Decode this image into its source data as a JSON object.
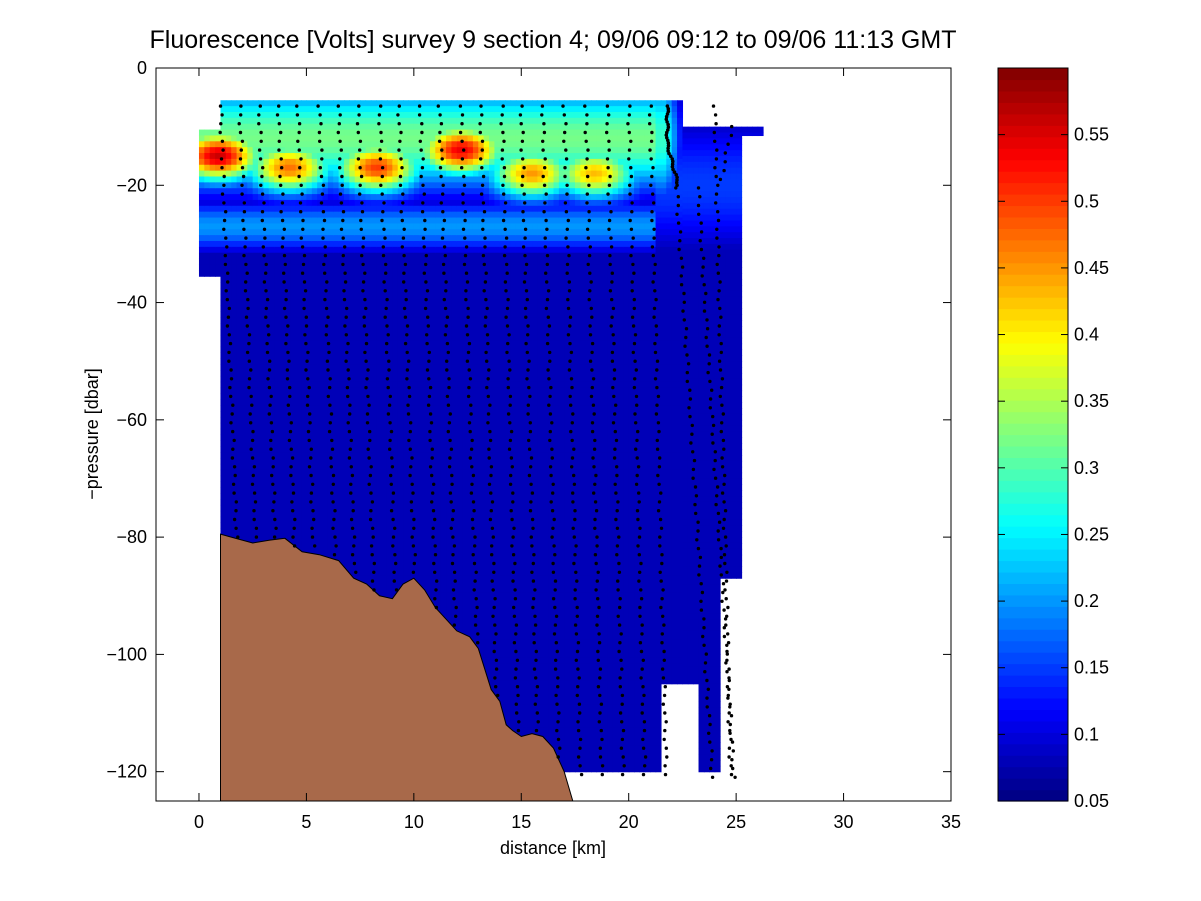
{
  "chart_data": {
    "type": "heatmap",
    "title": "Fluorescence [Volts] survey 9 section 4; 09/06 09:12 to 09/06 11:13 GMT",
    "xlabel": "distance [km]",
    "ylabel": "−pressure [dbar]",
    "xlim": [
      -2,
      35
    ],
    "ylim": [
      -125,
      0
    ],
    "x_ticks": [
      0,
      5,
      10,
      15,
      20,
      25,
      30,
      35
    ],
    "x_tick_labels": [
      "0",
      "5",
      "10",
      "15",
      "20",
      "25",
      "30",
      "35"
    ],
    "y_ticks": [
      0,
      -20,
      -40,
      -60,
      -80,
      -100,
      -120
    ],
    "y_tick_labels": [
      "0",
      "−20",
      "−40",
      "−60",
      "−80",
      "−100",
      "−120"
    ],
    "colorbar": {
      "colormap": "jet",
      "range": [
        0.05,
        0.6
      ],
      "ticks": [
        0.05,
        0.1,
        0.15,
        0.2,
        0.25,
        0.3,
        0.35,
        0.4,
        0.45,
        0.5,
        0.55
      ],
      "tick_labels": [
        "0.05",
        "0.1",
        "0.15",
        "0.2",
        "0.25",
        "0.3",
        "0.35",
        "0.4",
        "0.45",
        "0.5",
        "0.55"
      ]
    },
    "background_value": 0.08,
    "fluorescence_maxima": [
      {
        "x": 0.9,
        "y": -15,
        "value": 0.56
      },
      {
        "x": 4.2,
        "y": -17,
        "value": 0.47
      },
      {
        "x": 8.3,
        "y": -17,
        "value": 0.5
      },
      {
        "x": 12.2,
        "y": -14,
        "value": 0.54
      },
      {
        "x": 15.5,
        "y": -18,
        "value": 0.45
      },
      {
        "x": 18.4,
        "y": -18,
        "value": 0.43
      }
    ],
    "profile_x": [
      1,
      1.9,
      2.8,
      3.7,
      4.6,
      5.6,
      6.5,
      7.4,
      8.4,
      9.3,
      10.3,
      11.2,
      12.2,
      13.1,
      14.1,
      15,
      16,
      17,
      18,
      19,
      20,
      21,
      22,
      23,
      24,
      24.8
    ],
    "seabed": {
      "color": "#a8694a",
      "x": [
        1,
        1.5,
        2.5,
        3.3,
        4,
        4.8,
        5.6,
        6.5,
        7.2,
        7.8,
        8.4,
        9,
        9.5,
        10,
        10.5,
        11,
        11.5,
        12,
        12.6,
        13,
        13.6,
        14,
        14.3,
        14.6,
        15,
        15.5,
        16,
        16.5,
        17,
        17.4
      ],
      "y": [
        -79.5,
        -80,
        -81,
        -80.5,
        -80.2,
        -82.5,
        -83,
        -84,
        -87,
        -88,
        -90,
        -90.5,
        -88,
        -87,
        -89,
        -92,
        -94,
        -96,
        -97,
        -99,
        -106,
        -108,
        -112,
        -113,
        -114,
        -113.5,
        -114,
        -116,
        -120,
        -125
      ]
    }
  }
}
